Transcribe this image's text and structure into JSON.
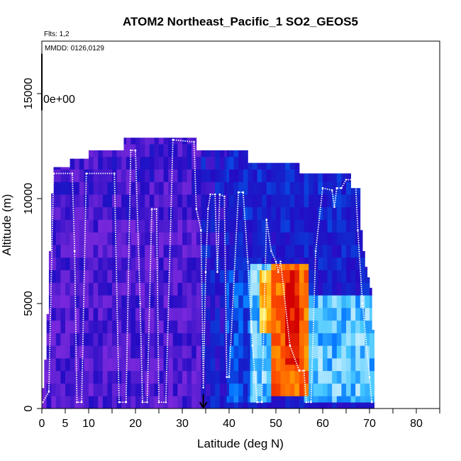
{
  "chart_data": {
    "type": "heatmap",
    "title": "ATOM2 Northeast_Pacific_1 SO2_GEOS5",
    "flights_note": "Flts: 1,2",
    "dates_note": "MMDD: 0126,0129",
    "colorbar_label": "0e+00",
    "xlabel": "Latitude (deg N)",
    "ylabel": "Altitude (m)",
    "xlim": [
      0,
      85
    ],
    "ylim": [
      0,
      17500
    ],
    "xticks": [
      0,
      5,
      10,
      20,
      30,
      40,
      50,
      60,
      70,
      80
    ],
    "yticks": [
      0,
      5000,
      10000,
      15000
    ],
    "minor_xticks": [
      5,
      15,
      25,
      35,
      45,
      55,
      65,
      75,
      85
    ],
    "arrow_marker_lat": 34.5,
    "curtain_top_profile": [
      {
        "lat": 0,
        "alt": 300
      },
      {
        "lat": 1,
        "alt": 3000
      },
      {
        "lat": 1.5,
        "alt": 6000
      },
      {
        "lat": 2,
        "alt": 9000
      },
      {
        "lat": 2.5,
        "alt": 11500
      },
      {
        "lat": 6,
        "alt": 11500
      },
      {
        "lat": 6,
        "alt": 11900
      },
      {
        "lat": 10,
        "alt": 11900
      },
      {
        "lat": 10,
        "alt": 12300
      },
      {
        "lat": 17.5,
        "alt": 12300
      },
      {
        "lat": 17.5,
        "alt": 12900
      },
      {
        "lat": 33,
        "alt": 12900
      },
      {
        "lat": 33,
        "alt": 12300
      },
      {
        "lat": 44,
        "alt": 12300
      },
      {
        "lat": 44,
        "alt": 11700
      },
      {
        "lat": 55,
        "alt": 11700
      },
      {
        "lat": 55,
        "alt": 11200
      },
      {
        "lat": 66,
        "alt": 11200
      },
      {
        "lat": 66,
        "alt": 10500
      },
      {
        "lat": 68,
        "alt": 10500
      },
      {
        "lat": 68,
        "alt": 9000
      },
      {
        "lat": 69,
        "alt": 7000
      },
      {
        "lat": 70.5,
        "alt": 5500
      },
      {
        "lat": 71,
        "alt": 2000
      },
      {
        "lat": 71,
        "alt": 300
      }
    ],
    "high_concentration_regions": [
      {
        "lat_range": [
          39.5,
          44.5
        ],
        "alt_range": [
          300,
          6500
        ],
        "level": "low-medium"
      },
      {
        "lat_range": [
          44.5,
          49
        ],
        "alt_range": [
          300,
          7000
        ],
        "level": "medium"
      },
      {
        "lat_range": [
          46.5,
          50
        ],
        "alt_range": [
          3500,
          6500
        ],
        "level": "high"
      },
      {
        "lat_range": [
          49,
          57
        ],
        "alt_range": [
          500,
          7000
        ],
        "level": "very-high"
      },
      {
        "lat_range": [
          52,
          55
        ],
        "alt_range": [
          2000,
          6500
        ],
        "level": "max"
      },
      {
        "lat_range": [
          56,
          71
        ],
        "alt_range": [
          300,
          5500
        ],
        "level": "medium"
      }
    ],
    "flight_track": [
      [
        0.2,
        300
      ],
      [
        1.5,
        800
      ],
      [
        2.5,
        11200
      ],
      [
        6.5,
        11200
      ],
      [
        7,
        7500
      ],
      [
        7.5,
        300
      ],
      [
        8.5,
        300
      ],
      [
        9.5,
        11200
      ],
      [
        15.5,
        11200
      ],
      [
        16.5,
        300
      ],
      [
        18,
        300
      ],
      [
        19,
        12300
      ],
      [
        20,
        12300
      ],
      [
        21,
        5000
      ],
      [
        21.5,
        300
      ],
      [
        22.5,
        300
      ],
      [
        23.5,
        9500
      ],
      [
        24.5,
        9500
      ],
      [
        25,
        300
      ],
      [
        26.5,
        300
      ],
      [
        28,
        12800
      ],
      [
        32.5,
        12700
      ],
      [
        33,
        9500
      ],
      [
        34,
        8500
      ],
      [
        34.5,
        1000
      ],
      [
        35,
        6500
      ],
      [
        35.5,
        9500
      ],
      [
        36,
        10200
      ],
      [
        37,
        10200
      ],
      [
        37.5,
        6500
      ],
      [
        38,
        10200
      ],
      [
        39,
        10100
      ],
      [
        39.5,
        1500
      ],
      [
        40,
        1500
      ],
      [
        42,
        10300
      ],
      [
        43,
        10300
      ],
      [
        44,
        7000
      ],
      [
        45,
        3000
      ],
      [
        46,
        300
      ],
      [
        47,
        300
      ],
      [
        48,
        9000
      ],
      [
        49,
        7500
      ],
      [
        50,
        7000
      ],
      [
        50.5,
        6500
      ],
      [
        51,
        7000
      ],
      [
        53,
        3000
      ],
      [
        55,
        1800
      ],
      [
        56,
        1800
      ],
      [
        56.5,
        300
      ],
      [
        57.5,
        300
      ],
      [
        58.5,
        7500
      ],
      [
        60,
        10500
      ],
      [
        62,
        10400
      ],
      [
        62.5,
        9600
      ],
      [
        63,
        10500
      ],
      [
        64,
        10500
      ],
      [
        65,
        10900
      ],
      [
        67,
        10900
      ],
      [
        67.5,
        8500
      ],
      [
        68.5,
        5000
      ],
      [
        70,
        1500
      ],
      [
        70.5,
        300
      ]
    ]
  }
}
